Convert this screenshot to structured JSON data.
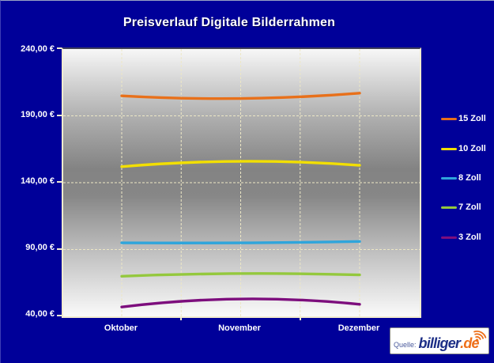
{
  "window": {
    "background_color": "#000099"
  },
  "chart_data": {
    "type": "line",
    "title": "Preisverlauf Digitale Bilderrahmen",
    "categories": [
      "Oktober",
      "November",
      "Dezember"
    ],
    "series": [
      {
        "name": "15 Zoll",
        "color": "#E8701A",
        "values": [
          205,
          203,
          207
        ]
      },
      {
        "name": "10 Zoll",
        "color": "#F2DF00",
        "values": [
          152,
          156,
          153
        ]
      },
      {
        "name": "8 Zoll",
        "color": "#2FA5DB",
        "values": [
          95,
          95,
          96
        ]
      },
      {
        "name": "7 Zoll",
        "color": "#94C83D",
        "values": [
          70,
          72,
          71
        ]
      },
      {
        "name": "3 Zoll",
        "color": "#7D0E7D",
        "values": [
          47,
          53,
          49
        ]
      }
    ],
    "xlabel": "",
    "ylabel": "",
    "ylim": [
      40,
      240
    ],
    "y_ticks": [
      240,
      190,
      140,
      90,
      40
    ],
    "y_tick_labels": [
      "240,00 €",
      "190,00 €",
      "140,00 €",
      "90,00 €",
      "40,00 €"
    ],
    "grid": true,
    "grid_color": "#EDE7C5",
    "legend_position": "right",
    "line_style": "smooth"
  },
  "source_badge": {
    "prefix": "Quelle:",
    "brand": "billiger",
    "suffix": ".de",
    "brand_color": "#1C2E86",
    "suffix_color": "#EE6F1A"
  }
}
